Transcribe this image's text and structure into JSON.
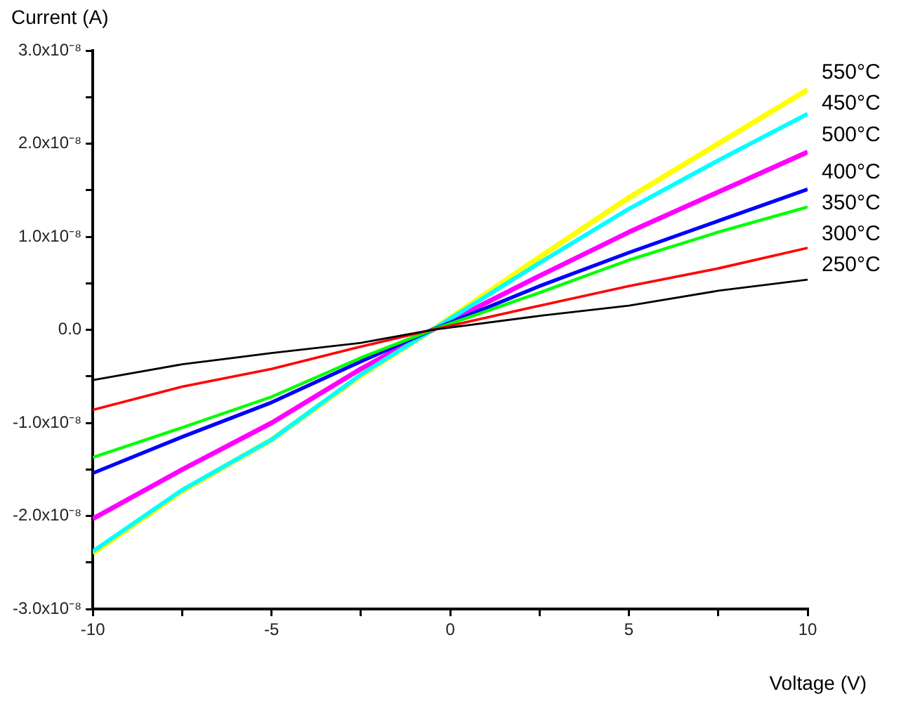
{
  "chart_data": {
    "type": "line",
    "xlabel": "Voltage (V)",
    "ylabel": "Current (A)",
    "x": [
      -10,
      -7.5,
      -5,
      -2.5,
      -0.5,
      2.5,
      5,
      7.5,
      10
    ],
    "series": [
      {
        "name": "250°C",
        "color": "#000000",
        "values": [
          -5.4e-09,
          -3.7e-09,
          -2.5e-09,
          -1.4e-09,
          0,
          1.5e-09,
          2.6e-09,
          4.2e-09,
          5.4e-09
        ]
      },
      {
        "name": "300°C",
        "color": "#ff0000",
        "values": [
          -8.6e-09,
          -6.1e-09,
          -4.2e-09,
          -1.8e-09,
          0,
          2.6e-09,
          4.7e-09,
          6.6e-09,
          8.8e-09
        ]
      },
      {
        "name": "350°C",
        "color": "#00ff00",
        "values": [
          -1.37e-08,
          -1.05e-08,
          -7.2e-09,
          -3e-09,
          0,
          4e-09,
          7.5e-09,
          1.05e-08,
          1.32e-08
        ]
      },
      {
        "name": "400°C",
        "color": "#0000ff",
        "values": [
          -1.54e-08,
          -1.15e-08,
          -7.8e-09,
          -3.4e-09,
          0,
          4.7e-09,
          8.3e-09,
          1.17e-08,
          1.51e-08
        ]
      },
      {
        "name": "450°C",
        "color": "#00ffff",
        "values": [
          -2.38e-08,
          -1.72e-08,
          -1.18e-08,
          -4.8e-09,
          0,
          7.2e-09,
          1.3e-08,
          1.82e-08,
          2.32e-08
        ]
      },
      {
        "name": "500°C",
        "color": "#ff00ff",
        "values": [
          -2.03e-08,
          -1.5e-08,
          -1e-08,
          -4.2e-09,
          0,
          5.8e-09,
          1.05e-08,
          1.48e-08,
          1.91e-08
        ]
      },
      {
        "name": "550°C",
        "color": "#ffff00",
        "values": [
          -2.4e-08,
          -1.73e-08,
          -1.18e-08,
          -4.9e-09,
          0,
          7.8e-09,
          1.42e-08,
          2e-08,
          2.58e-08
        ]
      }
    ],
    "xlim": [
      -10,
      10
    ],
    "xticks": [
      -10,
      {
        "value": -7.5,
        "label": null
      },
      -5,
      {
        "value": -2.5,
        "label": null
      },
      0,
      {
        "value": 2.5,
        "label": null
      },
      5,
      {
        "value": 7.5,
        "label": null
      },
      10
    ],
    "ylim": [
      -3e-08,
      3e-08
    ],
    "yticks": [
      {
        "value": -3e-08,
        "label": "-3.0x10⁻⁸"
      },
      {
        "value": -2.5e-08,
        "label": null
      },
      {
        "value": -2e-08,
        "label": "-2.0x10⁻⁸"
      },
      {
        "value": -1.5e-08,
        "label": null
      },
      {
        "value": -1e-08,
        "label": "-1.0x10⁻⁸"
      },
      {
        "value": -5e-09,
        "label": null
      },
      {
        "value": 0,
        "label": "0.0"
      },
      {
        "value": 5e-09,
        "label": null
      },
      {
        "value": 1e-08,
        "label": "1.0x10⁻⁸"
      },
      {
        "value": 1.5e-08,
        "label": null
      },
      {
        "value": 2e-08,
        "label": "2.0x10⁻⁸"
      },
      {
        "value": 2.5e-08,
        "label": null
      },
      {
        "value": 3e-08,
        "label": "3.0x10⁻⁸"
      }
    ],
    "grid": false,
    "legend": false,
    "marker": "none",
    "line_style": "solid"
  }
}
